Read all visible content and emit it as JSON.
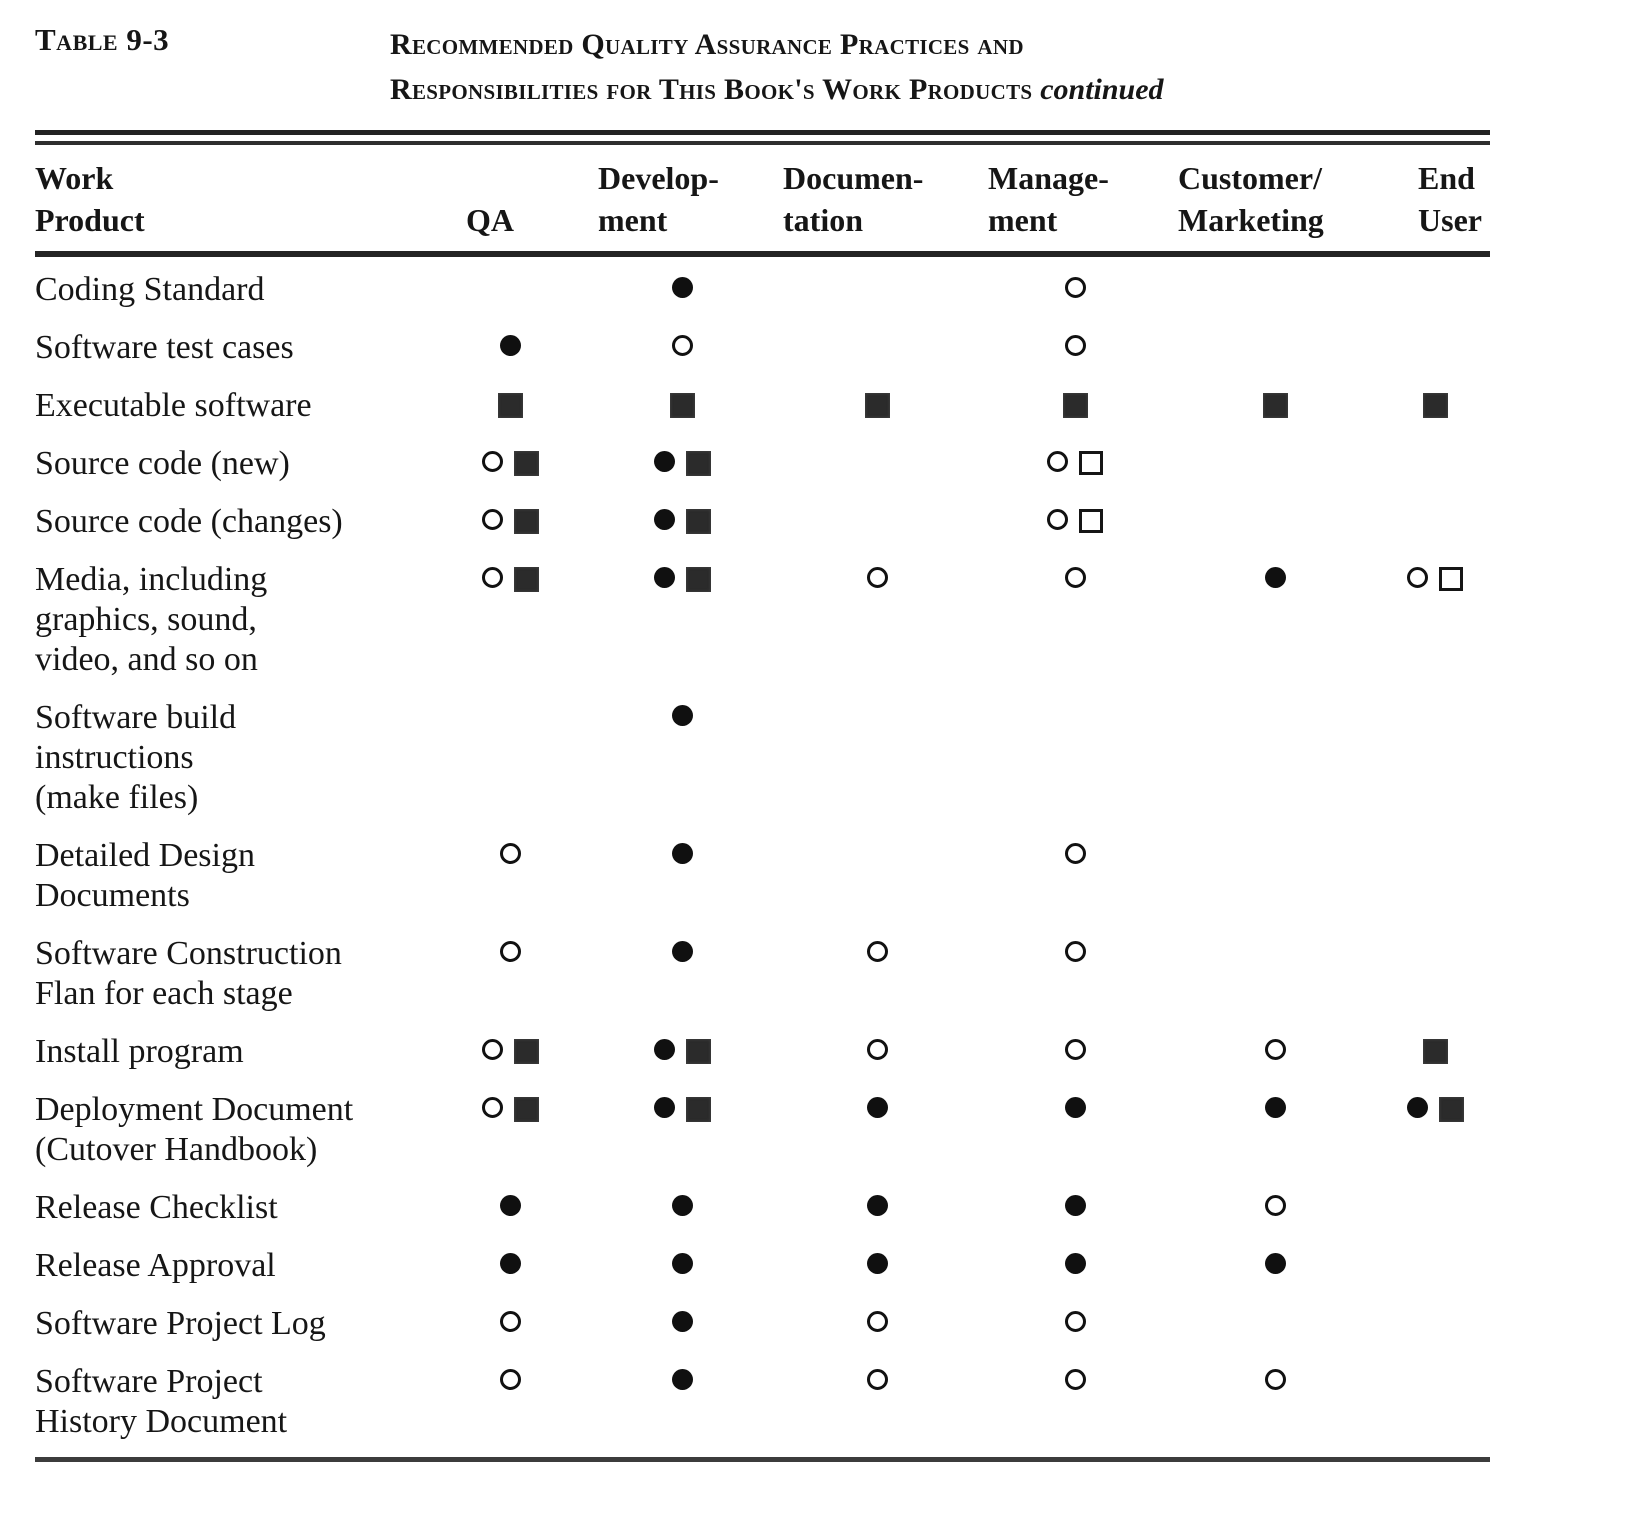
{
  "page": {
    "table_label": "Table 9-3",
    "title_line1": "Recommended Quality Assurance Practices and",
    "title_line2": "Responsibilities for This Book's Work Products",
    "title_continued": "continued"
  },
  "colors": {
    "ink": "#161616",
    "filled_square": "#2b2b2b",
    "background": "#ffffff"
  },
  "symbol_glyphs": {
    "filled-circle": "●",
    "open-circle": "○",
    "filled-square": "■",
    "open-square": "□"
  },
  "columns": [
    {
      "key": "work-product",
      "line1": "Work",
      "line2": "Product"
    },
    {
      "key": "qa",
      "line1": "",
      "line2": "QA"
    },
    {
      "key": "development",
      "line1": "Develop-",
      "line2": "ment"
    },
    {
      "key": "documentation",
      "line1": "Documen-",
      "line2": "tation"
    },
    {
      "key": "management",
      "line1": "Manage-",
      "line2": "ment"
    },
    {
      "key": "customer-marketing",
      "line1": "Customer/",
      "line2": "Marketing"
    },
    {
      "key": "end-user",
      "line1": "End",
      "line2": "User"
    }
  ],
  "rows": [
    {
      "label_lines": [
        "Coding Standard"
      ],
      "cells": [
        [],
        [
          "filled-circle"
        ],
        [],
        [
          "open-circle"
        ],
        [],
        []
      ]
    },
    {
      "label_lines": [
        "Software test cases"
      ],
      "cells": [
        [
          "filled-circle"
        ],
        [
          "open-circle"
        ],
        [],
        [
          "open-circle"
        ],
        [],
        []
      ]
    },
    {
      "label_lines": [
        "Executable software"
      ],
      "cells": [
        [
          "filled-square"
        ],
        [
          "filled-square"
        ],
        [
          "filled-square"
        ],
        [
          "filled-square"
        ],
        [
          "filled-square"
        ],
        [
          "filled-square"
        ]
      ]
    },
    {
      "label_lines": [
        "Source code (new)"
      ],
      "cells": [
        [
          "open-circle",
          "filled-square"
        ],
        [
          "filled-circle",
          "filled-square"
        ],
        [],
        [
          "open-circle",
          "open-square"
        ],
        [],
        []
      ]
    },
    {
      "label_lines": [
        "Source code (changes)"
      ],
      "cells": [
        [
          "open-circle",
          "filled-square"
        ],
        [
          "filled-circle",
          "filled-square"
        ],
        [],
        [
          "open-circle",
          "open-square"
        ],
        [],
        []
      ]
    },
    {
      "label_lines": [
        "Media, including",
        "graphics, sound,",
        "video, and so on"
      ],
      "cells": [
        [
          "open-circle",
          "filled-square"
        ],
        [
          "filled-circle",
          "filled-square"
        ],
        [
          "open-circle"
        ],
        [
          "open-circle"
        ],
        [
          "filled-circle"
        ],
        [
          "open-circle",
          "open-square"
        ]
      ]
    },
    {
      "label_lines": [
        "Software build",
        "instructions",
        "(make files)"
      ],
      "cells": [
        [],
        [
          "filled-circle"
        ],
        [],
        [],
        [],
        []
      ]
    },
    {
      "label_lines": [
        "Detailed Design",
        "Documents"
      ],
      "cells": [
        [
          "open-circle"
        ],
        [
          "filled-circle"
        ],
        [],
        [
          "open-circle"
        ],
        [],
        []
      ]
    },
    {
      "label_lines": [
        "Software  Construction",
        "Flan for each stage"
      ],
      "cells": [
        [
          "open-circle"
        ],
        [
          "filled-circle"
        ],
        [
          "open-circle"
        ],
        [
          "open-circle"
        ],
        [],
        []
      ]
    },
    {
      "label_lines": [
        "Install program"
      ],
      "cells": [
        [
          "open-circle",
          "filled-square"
        ],
        [
          "filled-circle",
          "filled-square"
        ],
        [
          "open-circle"
        ],
        [
          "open-circle"
        ],
        [
          "open-circle"
        ],
        [
          "filled-square"
        ]
      ]
    },
    {
      "label_lines": [
        "Deployment Document",
        "(Cutover  Handbook)"
      ],
      "cells": [
        [
          "open-circle",
          "filled-square"
        ],
        [
          "filled-circle",
          "filled-square"
        ],
        [
          "filled-circle"
        ],
        [
          "filled-circle"
        ],
        [
          "filled-circle"
        ],
        [
          "filled-circle",
          "filled-square"
        ]
      ]
    },
    {
      "label_lines": [
        "Release  Checklist"
      ],
      "cells": [
        [
          "filled-circle"
        ],
        [
          "filled-circle"
        ],
        [
          "filled-circle"
        ],
        [
          "filled-circle"
        ],
        [
          "open-circle"
        ],
        []
      ]
    },
    {
      "label_lines": [
        "Release  Approval"
      ],
      "cells": [
        [
          "filled-circle"
        ],
        [
          "filled-circle"
        ],
        [
          "filled-circle"
        ],
        [
          "filled-circle"
        ],
        [
          "filled-circle"
        ],
        []
      ]
    },
    {
      "label_lines": [
        "Software Project Log"
      ],
      "cells": [
        [
          "open-circle"
        ],
        [
          "filled-circle"
        ],
        [
          "open-circle"
        ],
        [
          "open-circle"
        ],
        [],
        []
      ]
    },
    {
      "label_lines": [
        "Software Project",
        "History Document"
      ],
      "cells": [
        [
          "open-circle"
        ],
        [
          "filled-circle"
        ],
        [
          "open-circle"
        ],
        [
          "open-circle"
        ],
        [
          "open-circle"
        ],
        []
      ]
    }
  ]
}
